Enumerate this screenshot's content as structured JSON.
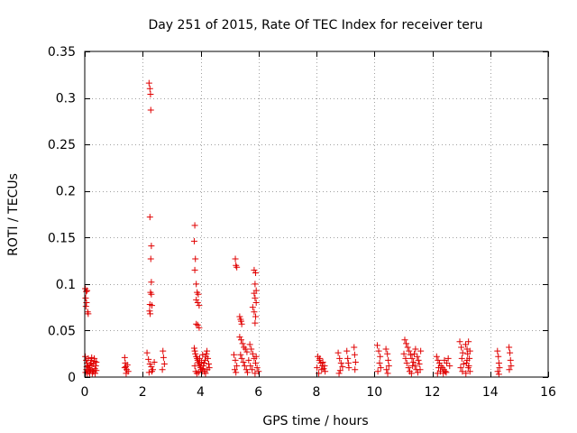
{
  "chart_data": {
    "type": "scatter",
    "title": "Day 251 of 2015, Rate Of TEC Index for receiver teru",
    "xlabel": "GPS time / hours",
    "ylabel": "ROTI / TECUs",
    "xlim": [
      0,
      16
    ],
    "ylim": [
      0,
      0.35
    ],
    "xticks": [
      0,
      2,
      4,
      6,
      8,
      10,
      12,
      14,
      16
    ],
    "xtick_labels": [
      "0",
      "2",
      "4",
      "6",
      "8",
      "10",
      "12",
      "14",
      "16"
    ],
    "yticks": [
      0,
      0.05,
      0.1,
      0.15,
      0.2,
      0.25,
      0.3,
      0.35
    ],
    "ytick_labels": [
      "0",
      "0.05",
      "0.1",
      "0.15",
      "0.2",
      "0.25",
      "0.3",
      "0.35"
    ],
    "grid": true,
    "marker": "plus",
    "color": "#e00000",
    "series": [
      {
        "name": "ROTI",
        "points": [
          [
            0.02,
            0.095
          ],
          [
            0.05,
            0.092
          ],
          [
            0.08,
            0.093
          ],
          [
            0.03,
            0.085
          ],
          [
            0.06,
            0.08
          ],
          [
            0.1,
            0.07
          ],
          [
            0.12,
            0.068
          ],
          [
            0.04,
            0.076
          ],
          [
            0.02,
            0.022
          ],
          [
            0.05,
            0.018
          ],
          [
            0.08,
            0.015
          ],
          [
            0.1,
            0.012
          ],
          [
            0.12,
            0.02
          ],
          [
            0.15,
            0.01
          ],
          [
            0.18,
            0.008
          ],
          [
            0.2,
            0.015
          ],
          [
            0.22,
            0.018
          ],
          [
            0.25,
            0.012
          ],
          [
            0.28,
            0.006
          ],
          [
            0.3,
            0.014
          ],
          [
            0.33,
            0.02
          ],
          [
            0.35,
            0.009
          ],
          [
            0.38,
            0.012
          ],
          [
            0.4,
            0.016
          ],
          [
            0.03,
            0.005
          ],
          [
            0.06,
            0.008
          ],
          [
            0.09,
            0.004
          ],
          [
            0.13,
            0.006
          ],
          [
            0.17,
            0.004
          ],
          [
            0.21,
            0.007
          ],
          [
            0.26,
            0.004
          ],
          [
            0.31,
            0.006
          ],
          [
            0.36,
            0.004
          ],
          [
            0.4,
            0.007
          ],
          [
            0.07,
            0.011
          ],
          [
            0.16,
            0.013
          ],
          [
            0.24,
            0.021
          ],
          [
            0.34,
            0.017
          ],
          [
            1.38,
            0.021
          ],
          [
            1.4,
            0.015
          ],
          [
            1.42,
            0.011
          ],
          [
            1.45,
            0.008
          ],
          [
            1.47,
            0.013
          ],
          [
            1.5,
            0.006
          ],
          [
            1.43,
            0.004
          ],
          [
            1.38,
            0.01
          ],
          [
            2.15,
            0.026
          ],
          [
            2.2,
            0.019
          ],
          [
            2.25,
            0.014
          ],
          [
            2.3,
            0.011
          ],
          [
            2.35,
            0.008
          ],
          [
            2.4,
            0.016
          ],
          [
            2.22,
            0.005
          ],
          [
            2.32,
            0.006
          ],
          [
            2.7,
            0.028
          ],
          [
            2.72,
            0.021
          ],
          [
            2.75,
            0.014
          ],
          [
            2.68,
            0.008
          ],
          [
            2.22,
            0.316
          ],
          [
            2.25,
            0.31
          ],
          [
            2.27,
            0.304
          ],
          [
            2.28,
            0.287
          ],
          [
            2.25,
            0.172
          ],
          [
            2.3,
            0.141
          ],
          [
            2.28,
            0.127
          ],
          [
            2.3,
            0.102
          ],
          [
            2.27,
            0.091
          ],
          [
            2.3,
            0.089
          ],
          [
            2.25,
            0.078
          ],
          [
            2.32,
            0.077
          ],
          [
            2.24,
            0.071
          ],
          [
            2.26,
            0.068
          ],
          [
            3.8,
            0.163
          ],
          [
            3.78,
            0.146
          ],
          [
            3.82,
            0.127
          ],
          [
            3.8,
            0.115
          ],
          [
            3.85,
            0.1
          ],
          [
            3.88,
            0.091
          ],
          [
            3.92,
            0.089
          ],
          [
            3.85,
            0.083
          ],
          [
            3.9,
            0.08
          ],
          [
            3.95,
            0.077
          ],
          [
            3.85,
            0.057
          ],
          [
            3.9,
            0.056
          ],
          [
            3.95,
            0.053
          ],
          [
            3.78,
            0.031
          ],
          [
            3.8,
            0.028
          ],
          [
            3.82,
            0.025
          ],
          [
            3.85,
            0.022
          ],
          [
            3.88,
            0.02
          ],
          [
            3.9,
            0.018
          ],
          [
            3.92,
            0.016
          ],
          [
            3.95,
            0.014
          ],
          [
            3.98,
            0.012
          ],
          [
            4.0,
            0.01
          ],
          [
            4.02,
            0.008
          ],
          [
            4.05,
            0.006
          ],
          [
            4.08,
            0.009
          ],
          [
            4.1,
            0.012
          ],
          [
            4.12,
            0.015
          ],
          [
            4.15,
            0.018
          ],
          [
            4.18,
            0.022
          ],
          [
            4.2,
            0.025
          ],
          [
            4.22,
            0.028
          ],
          [
            4.25,
            0.02
          ],
          [
            4.28,
            0.014
          ],
          [
            4.3,
            0.01
          ],
          [
            3.8,
            0.012
          ],
          [
            3.83,
            0.006
          ],
          [
            3.87,
            0.004
          ],
          [
            3.93,
            0.005
          ],
          [
            3.97,
            0.02
          ],
          [
            4.03,
            0.016
          ],
          [
            4.07,
            0.024
          ],
          [
            4.13,
            0.006
          ],
          [
            4.17,
            0.004
          ],
          [
            4.23,
            0.008
          ],
          [
            5.2,
            0.127
          ],
          [
            5.22,
            0.12
          ],
          [
            5.25,
            0.118
          ],
          [
            5.15,
            0.024
          ],
          [
            5.2,
            0.018
          ],
          [
            5.25,
            0.012
          ],
          [
            5.18,
            0.008
          ],
          [
            5.22,
            0.005
          ],
          [
            5.35,
            0.065
          ],
          [
            5.38,
            0.062
          ],
          [
            5.4,
            0.06
          ],
          [
            5.42,
            0.057
          ],
          [
            5.35,
            0.043
          ],
          [
            5.4,
            0.04
          ],
          [
            5.45,
            0.036
          ],
          [
            5.5,
            0.032
          ],
          [
            5.55,
            0.03
          ],
          [
            5.6,
            0.027
          ],
          [
            5.38,
            0.024
          ],
          [
            5.42,
            0.02
          ],
          [
            5.48,
            0.016
          ],
          [
            5.52,
            0.012
          ],
          [
            5.58,
            0.008
          ],
          [
            5.62,
            0.005
          ],
          [
            5.7,
            0.035
          ],
          [
            5.75,
            0.03
          ],
          [
            5.8,
            0.025
          ],
          [
            5.85,
            0.02
          ],
          [
            5.9,
            0.015
          ],
          [
            5.95,
            0.01
          ],
          [
            6.0,
            0.006
          ],
          [
            5.72,
            0.012
          ],
          [
            5.78,
            0.008
          ],
          [
            5.88,
            0.004
          ],
          [
            5.66,
            0.018
          ],
          [
            5.92,
            0.022
          ],
          [
            5.85,
            0.115
          ],
          [
            5.9,
            0.112
          ],
          [
            5.88,
            0.1
          ],
          [
            5.92,
            0.093
          ],
          [
            5.85,
            0.09
          ],
          [
            5.88,
            0.085
          ],
          [
            5.92,
            0.08
          ],
          [
            5.8,
            0.075
          ],
          [
            5.85,
            0.07
          ],
          [
            5.9,
            0.065
          ],
          [
            5.88,
            0.058
          ],
          [
            8.05,
            0.022
          ],
          [
            8.1,
            0.018
          ],
          [
            8.15,
            0.015
          ],
          [
            8.2,
            0.012
          ],
          [
            8.25,
            0.009
          ],
          [
            8.3,
            0.006
          ],
          [
            8.08,
            0.004
          ],
          [
            8.18,
            0.008
          ],
          [
            8.12,
            0.02
          ],
          [
            8.22,
            0.016
          ],
          [
            8.28,
            0.012
          ],
          [
            8.02,
            0.01
          ],
          [
            8.75,
            0.026
          ],
          [
            8.8,
            0.02
          ],
          [
            8.85,
            0.015
          ],
          [
            8.9,
            0.011
          ],
          [
            8.82,
            0.007
          ],
          [
            8.78,
            0.004
          ],
          [
            9.05,
            0.028
          ],
          [
            9.08,
            0.02
          ],
          [
            9.1,
            0.015
          ],
          [
            9.12,
            0.01
          ],
          [
            9.3,
            0.032
          ],
          [
            9.32,
            0.024
          ],
          [
            9.35,
            0.016
          ],
          [
            9.33,
            0.008
          ],
          [
            10.1,
            0.034
          ],
          [
            10.15,
            0.028
          ],
          [
            10.2,
            0.022
          ],
          [
            10.18,
            0.015
          ],
          [
            10.22,
            0.01
          ],
          [
            10.12,
            0.006
          ],
          [
            10.4,
            0.03
          ],
          [
            10.45,
            0.025
          ],
          [
            10.48,
            0.018
          ],
          [
            10.5,
            0.012
          ],
          [
            10.42,
            0.008
          ],
          [
            10.46,
            0.004
          ],
          [
            11.05,
            0.04
          ],
          [
            11.1,
            0.036
          ],
          [
            11.15,
            0.032
          ],
          [
            11.2,
            0.028
          ],
          [
            11.25,
            0.024
          ],
          [
            11.3,
            0.02
          ],
          [
            11.35,
            0.016
          ],
          [
            11.4,
            0.012
          ],
          [
            11.45,
            0.008
          ],
          [
            11.5,
            0.005
          ],
          [
            11.08,
            0.02
          ],
          [
            11.12,
            0.015
          ],
          [
            11.18,
            0.01
          ],
          [
            11.22,
            0.006
          ],
          [
            11.28,
            0.004
          ],
          [
            11.32,
            0.012
          ],
          [
            11.38,
            0.025
          ],
          [
            11.42,
            0.03
          ],
          [
            11.48,
            0.022
          ],
          [
            11.52,
            0.018
          ],
          [
            11.55,
            0.014
          ],
          [
            11.6,
            0.028
          ],
          [
            11.02,
            0.025
          ],
          [
            11.58,
            0.008
          ],
          [
            12.15,
            0.022
          ],
          [
            12.2,
            0.018
          ],
          [
            12.25,
            0.015
          ],
          [
            12.3,
            0.012
          ],
          [
            12.35,
            0.01
          ],
          [
            12.4,
            0.008
          ],
          [
            12.45,
            0.006
          ],
          [
            12.5,
            0.015
          ],
          [
            12.55,
            0.02
          ],
          [
            12.6,
            0.012
          ],
          [
            12.18,
            0.004
          ],
          [
            12.28,
            0.006
          ],
          [
            12.38,
            0.004
          ],
          [
            12.48,
            0.005
          ],
          [
            12.22,
            0.01
          ],
          [
            12.42,
            0.018
          ],
          [
            12.95,
            0.038
          ],
          [
            13.0,
            0.032
          ],
          [
            13.05,
            0.026
          ],
          [
            13.02,
            0.02
          ],
          [
            13.08,
            0.014
          ],
          [
            12.98,
            0.01
          ],
          [
            13.04,
            0.006
          ],
          [
            13.15,
            0.035
          ],
          [
            13.2,
            0.03
          ],
          [
            13.25,
            0.038
          ],
          [
            13.22,
            0.025
          ],
          [
            13.28,
            0.02
          ],
          [
            13.18,
            0.015
          ],
          [
            13.24,
            0.01
          ],
          [
            13.3,
            0.006
          ],
          [
            13.16,
            0.004
          ],
          [
            13.26,
            0.012
          ],
          [
            13.2,
            0.018
          ],
          [
            13.3,
            0.028
          ],
          [
            14.25,
            0.028
          ],
          [
            14.28,
            0.022
          ],
          [
            14.3,
            0.015
          ],
          [
            14.32,
            0.01
          ],
          [
            14.26,
            0.006
          ],
          [
            14.3,
            0.003
          ],
          [
            14.65,
            0.032
          ],
          [
            14.68,
            0.026
          ],
          [
            14.7,
            0.018
          ],
          [
            14.72,
            0.012
          ],
          [
            14.66,
            0.008
          ]
        ]
      }
    ]
  }
}
